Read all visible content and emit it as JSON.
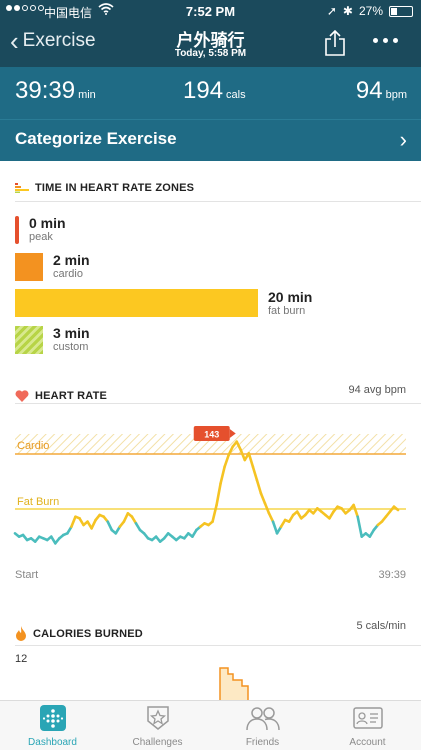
{
  "status_bar": {
    "carrier": "中国电信",
    "time": "7:52 PM",
    "battery": "27%"
  },
  "nav": {
    "back_label": "Exercise",
    "title": "户外骑行",
    "subtitle": "Today, 5:58 PM"
  },
  "stats": {
    "duration": {
      "value": "39:39",
      "unit": "min"
    },
    "calories": {
      "value": "194",
      "unit": "cals"
    },
    "heart_rate": {
      "value": "94",
      "unit": "bpm"
    }
  },
  "categorize_label": "Categorize Exercise",
  "zones_section": {
    "title": "TIME IN HEART RATE ZONES",
    "zones": [
      {
        "value": "0 min",
        "label": "peak",
        "color": "#e5502d"
      },
      {
        "value": "2 min",
        "label": "cardio",
        "color": "#f39220"
      },
      {
        "value": "20 min",
        "label": "fat burn",
        "color": "#fcc821"
      },
      {
        "value": "3 min",
        "label": "custom",
        "color": "#b7d447"
      }
    ]
  },
  "heart_rate_section": {
    "title": "HEART RATE",
    "avg": "94 avg bpm",
    "cardio_label": "Cardio",
    "fatburn_label": "Fat Burn",
    "peak_marker": "143",
    "x_start": "Start",
    "x_end": "39:39"
  },
  "chart_data": {
    "type": "line",
    "x_start": "Start",
    "x_end": "39:39",
    "peak_value": 143,
    "bands": [
      {
        "name": "Cardio",
        "color": "#f39220"
      },
      {
        "name": "Fat Burn",
        "color": "#fcc821"
      }
    ],
    "series": [
      {
        "values": [
          88,
          86,
          87,
          84,
          85,
          83,
          86,
          85,
          84,
          86,
          82,
          85,
          87,
          88,
          92,
          98,
          97,
          93,
          95,
          91,
          96,
          99,
          98,
          95,
          90,
          88,
          92,
          95,
          100,
          98,
          94,
          90,
          88,
          85,
          84,
          86,
          83,
          85,
          88,
          86,
          84,
          86,
          85,
          88,
          86,
          90,
          92,
          94,
          93,
          95,
          105,
          118,
          128,
          135,
          140,
          143,
          138,
          132,
          136,
          128,
          120,
          112,
          106,
          100,
          95,
          88,
          92,
          96,
          95,
          99,
          101,
          97,
          99,
          102,
          100,
          103,
          101,
          99,
          97,
          101,
          104,
          103,
          100,
          102,
          105,
          98,
          86,
          88,
          86,
          90,
          93,
          95,
          98,
          101,
          104,
          102
        ]
      }
    ]
  },
  "calories_section": {
    "title": "CALORIES BURNED",
    "rate": "5 cals/min",
    "y_max": "12"
  },
  "tabs": [
    {
      "label": "Dashboard",
      "icon": "dashboard-icon",
      "active": true
    },
    {
      "label": "Challenges",
      "icon": "challenges-icon",
      "active": false
    },
    {
      "label": "Friends",
      "icon": "friends-icon",
      "active": false
    },
    {
      "label": "Account",
      "icon": "account-icon",
      "active": false
    }
  ],
  "colors": {
    "nav_bg": "#1b4a5c",
    "band_bg": "#1f6b85",
    "accent": "#2aa5b5",
    "hr_low": "#4bbdbd",
    "hr_fatburn": "#f5c323",
    "marker": "#e5502d"
  }
}
